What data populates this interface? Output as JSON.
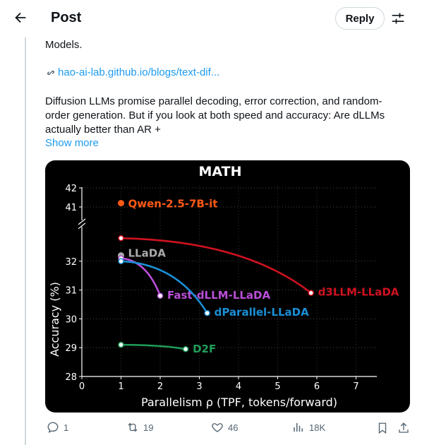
{
  "header": {
    "title": "Post",
    "reply_label": "Reply"
  },
  "tweet": {
    "text_top": "Models.",
    "link_text": "hao-ai-lab.github.io/blogs/text-dif...",
    "body_lines": [
      "Diffusion LLMs promise parallel decoding, error correction, and random-",
      "order generation. But if you look at both speed and accuracy: Are dLLMs",
      "actually better than AR +"
    ],
    "show_more": "Show more"
  },
  "chart_data": {
    "type": "line",
    "title": "MATH",
    "xlabel": "Parallelism ρ (TPF, tokens/forward)",
    "ylabel": "Accuracy (%)",
    "xlim": [
      0,
      7
    ],
    "x_ticks": [
      "0",
      "1",
      "2",
      "3",
      "4",
      "5",
      "6",
      "7"
    ],
    "y_ticks_lower": [
      "28",
      "29",
      "30",
      "31",
      "32"
    ],
    "y_ticks_upper": [
      "41",
      "42"
    ],
    "broken_axis": true,
    "series": [
      {
        "name": "Qwen-2.5-7B-it",
        "color": "#ff5a14",
        "points": [
          [
            1,
            41.2
          ]
        ]
      },
      {
        "name": "LLaDA",
        "color": "#aaaaaa",
        "points": [
          [
            1,
            32.2
          ]
        ]
      },
      {
        "name": "Fast-dLLM-LLaDA",
        "color": "#b94fd8",
        "points": [
          [
            1,
            32.1
          ],
          [
            2,
            30.8
          ]
        ]
      },
      {
        "name": "dParallel-LLaDA",
        "color": "#1b8fd6",
        "points": [
          [
            1,
            32.0
          ],
          [
            3.2,
            30.2
          ]
        ]
      },
      {
        "name": "d3LLM-LLaDA",
        "color": "#d0121f",
        "points": [
          [
            1,
            32.8
          ],
          [
            5.85,
            30.9
          ]
        ]
      },
      {
        "name": "D2F",
        "color": "#1f9e5a",
        "points": [
          [
            1,
            29.1
          ],
          [
            2.65,
            28.95
          ]
        ]
      }
    ]
  },
  "actions": {
    "replies": "1",
    "reposts": "19",
    "likes": "46",
    "views": "18K"
  },
  "colors": {
    "link": "#1d9bf0",
    "muted": "#536471"
  }
}
